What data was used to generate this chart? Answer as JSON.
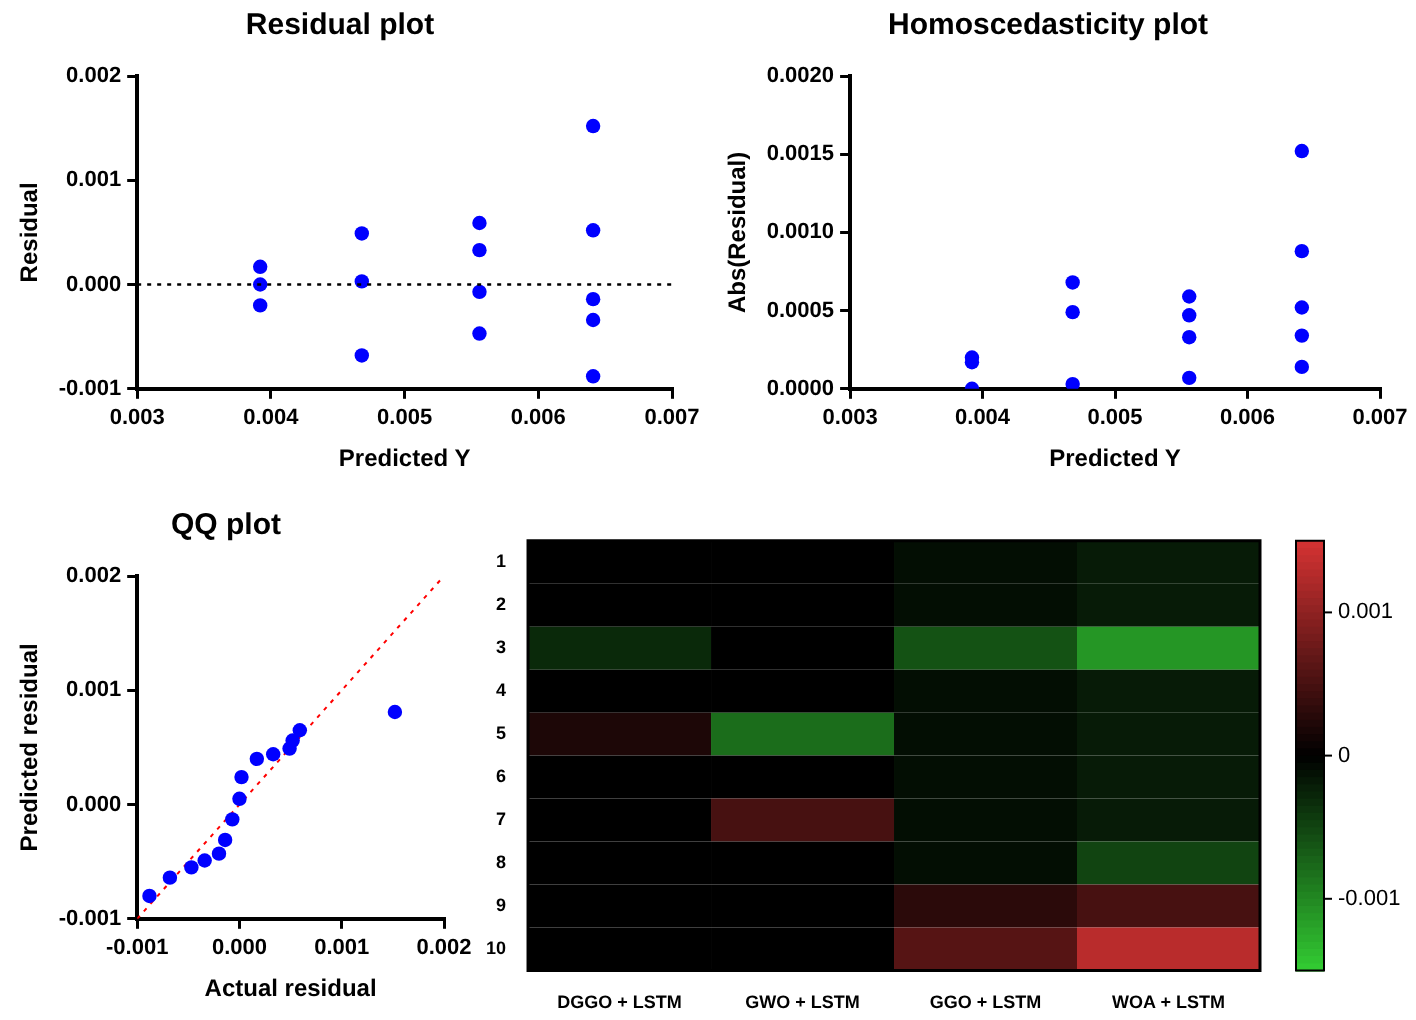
{
  "chart_data": [
    {
      "type": "scatter",
      "title": "Residual plot",
      "xlabel": "Predicted Y",
      "ylabel": "Residual",
      "marker": "circle",
      "color": "#0000ff",
      "x": [
        0.00392,
        0.00392,
        0.00392,
        0.00468,
        0.00468,
        0.00468,
        0.00556,
        0.00556,
        0.00556,
        0.00556,
        0.00641,
        0.00641,
        0.00641,
        0.00641,
        0.00641
      ],
      "values": [
        0.00017,
        0,
        -0.0002,
        0.00049,
        3e-05,
        -0.00068,
        0.00059,
        0.00033,
        -7e-05,
        -0.00047,
        0.00152,
        0.00052,
        -0.00014,
        -0.00034,
        -0.00088
      ],
      "xlim": [
        0.003,
        0.007
      ],
      "xticks": [
        0.003,
        0.004,
        0.005,
        0.006,
        0.007
      ],
      "ylim": [
        -0.001,
        0.002
      ],
      "yticks": [
        -0.001,
        {
          "value": 0,
          "label": "0.000"
        },
        0.001,
        0.002
      ],
      "ref_lines": [
        {
          "axis": "y",
          "value": 0,
          "color": "#000000",
          "line_style": "dotted"
        }
      ]
    },
    {
      "type": "scatter",
      "title": "Homoscedasticity plot",
      "xlabel": "Predicted Y",
      "ylabel": "Abs(Residual)",
      "marker": "circle",
      "color": "#0000ff",
      "x": [
        0.00392,
        0.00392,
        0.00392,
        0.00468,
        0.00468,
        0.00468,
        0.00556,
        0.00556,
        0.00556,
        0.00556,
        0.00641,
        0.00641,
        0.00641,
        0.00641,
        0.00641
      ],
      "values": [
        0.0002,
        0.00017,
        0,
        0.00068,
        0.00049,
        3e-05,
        0.00059,
        0.00047,
        0.00033,
        7e-05,
        0.00152,
        0.00088,
        0.00052,
        0.00034,
        0.00014
      ],
      "xlim": [
        0.003,
        0.007
      ],
      "xticks": [
        0.003,
        0.004,
        0.005,
        0.006,
        0.007
      ],
      "ylim": [
        0,
        0.002
      ],
      "yticks": [
        {
          "value": 0,
          "label": "0.0000"
        },
        0.0005,
        {
          "value": 0.001,
          "label": "0.0010"
        },
        0.0015,
        {
          "value": 0.002,
          "label": "0.0020"
        }
      ]
    },
    {
      "type": "scatter",
      "title": "QQ plot",
      "xlabel": "Actual residual",
      "ylabel": "Predicted residual",
      "marker": "circle",
      "series": [
        {
          "type": "scatter",
          "color": "#0000ff",
          "x": [
            -0.00088,
            -0.00068,
            -0.00047,
            -0.00034,
            -0.0002,
            -0.00014,
            -7e-05,
            0,
            2e-05,
            0.00017,
            0.00033,
            0.00049,
            0.00052,
            0.00059,
            0.00152
          ],
          "values": [
            -0.0008,
            -0.00064,
            -0.00055,
            -0.00049,
            -0.00043,
            -0.00031,
            -0.00013,
            5e-05,
            0.00024,
            0.0004,
            0.00044,
            0.00049,
            0.00056,
            0.00065,
            0.00081
          ]
        },
        {
          "type": "line",
          "color": "#ff0000",
          "line_style": "dotted",
          "marker": "none",
          "x": [
            -0.001,
            0.002
          ],
          "values": [
            -0.001,
            0.002
          ]
        }
      ],
      "xlim": [
        -0.001,
        0.002
      ],
      "xticks": [
        -0.001,
        {
          "value": 0,
          "label": "0.000"
        },
        0.001,
        0.002
      ],
      "ylim": [
        -0.001,
        0.002
      ],
      "yticks": [
        -0.001,
        {
          "value": 0,
          "label": "0.000"
        },
        0.001,
        0.002
      ]
    },
    {
      "type": "heatmap",
      "categories": [
        "DGGO + LSTM",
        "GWO + LSTM",
        "GGO + LSTM",
        "WOA + LSTM"
      ],
      "y_categories": [
        "1",
        "2",
        "3",
        "4",
        "5",
        "6",
        "7",
        "8",
        "9",
        "10"
      ],
      "cells": [
        [
          0,
          0,
          -0.0001,
          -0.0002
        ],
        [
          0,
          0,
          -0.0001,
          -0.0002
        ],
        [
          -0.0003,
          0,
          -0.0006,
          -0.0011
        ],
        [
          0,
          0,
          -0.0001,
          -0.0002
        ],
        [
          0.0002,
          -0.0008,
          -0.0001,
          -0.0002
        ],
        [
          0,
          0,
          -0.0001,
          -0.0002
        ],
        [
          0,
          0.0005,
          -0.0001,
          -0.0002
        ],
        [
          0,
          0,
          -0.0001,
          -0.0005
        ],
        [
          0,
          0,
          0.0003,
          0.0005
        ],
        [
          0,
          0,
          0.0006,
          0.0013
        ]
      ],
      "clim": [
        -0.0015,
        0.0015
      ],
      "cticks": [
        -0.001,
        0,
        0.001
      ]
    }
  ]
}
